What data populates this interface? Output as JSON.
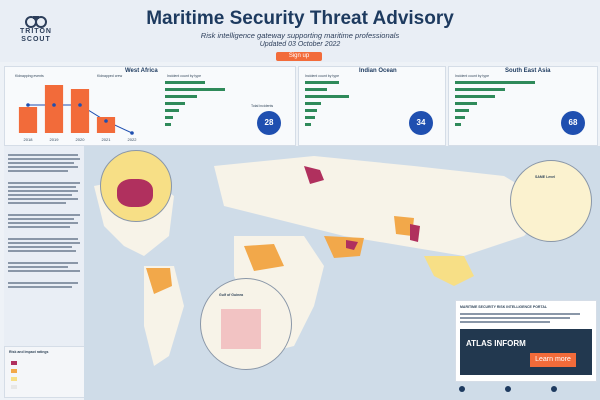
{
  "header": {
    "title": "Maritime Security Threat Advisory",
    "subtitle": "Risk intelligence gateway supporting maritime professionals",
    "updated": "Updated 03 October 2022",
    "signup_label": "Sign up",
    "brand_line1": "TRITON",
    "brand_line2": "SCOUT"
  },
  "panels": {
    "west_africa": {
      "title": "West Africa",
      "legend_bar": "Kidnapping events",
      "legend_line": "Kidnapped crew",
      "incidents_label": "Incident count by type",
      "total_label": "Total incidents",
      "total_value": "28"
    },
    "indian_ocean": {
      "title": "Indian Ocean",
      "incidents_label": "Incident count by type",
      "total_value": "34"
    },
    "south_east_asia": {
      "title": "South East Asia",
      "incidents_label": "Incident count by type",
      "total_value": "68"
    }
  },
  "map": {
    "inset_labels": [
      "Gulf of Guinea",
      "SAME Level"
    ],
    "legend_title": "Risk and Impact ratings"
  },
  "portal": {
    "heading": "MARITIME SECURITY RISK INTELLIGENCE PORTAL",
    "logo_text": "ATLAS INFORM",
    "cta_label": "Learn more"
  },
  "colors": {
    "navy": "#1d3a5f",
    "orange": "#f26b3a",
    "magenta": "#b0305e",
    "amber": "#f2a84a",
    "yellow": "#f7df86",
    "ocean": "#cfdce8",
    "green": "#2f8a5a",
    "blue": "#1f4fb0"
  },
  "chart_data": [
    {
      "type": "bar",
      "categories": [
        "2018",
        "2019",
        "2020",
        "2021",
        "2022"
      ],
      "series": [
        {
          "name": "Kidnapping events",
          "values": [
            13,
            24,
            22,
            8,
            0
          ]
        },
        {
          "name": "Kidnapped crew",
          "values": [
            14,
            14,
            14,
            6,
            0
          ]
        }
      ]
    }
  ]
}
